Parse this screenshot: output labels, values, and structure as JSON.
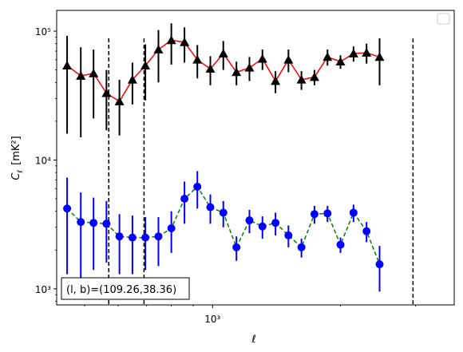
{
  "chart_data": {
    "type": "scatter",
    "xlabel": "ℓ",
    "ylabel_main": "C",
    "ylabel_sub": "ℓ",
    "ylabel_unit": "[mK²]",
    "x_scale": "log",
    "y_scale": "log",
    "xlim": [
      430,
      3700
    ],
    "ylim": [
      750,
      145000
    ],
    "x_tick_labels": [
      {
        "value": 1000,
        "label": "10³"
      }
    ],
    "y_tick_labels": [
      {
        "value": 1000,
        "label": "10³"
      },
      {
        "value": 10000,
        "label": "10⁴"
      },
      {
        "value": 100000,
        "label": "10⁵"
      }
    ],
    "grid": false,
    "legend": {
      "placement": "top-right",
      "entries": []
    },
    "vlines": [
      570,
      690,
      2960
    ],
    "annotation": "(l, b)=(109.26,38.36)",
    "annotation_placement": "bottom-left",
    "series": [
      {
        "marker": "triangle",
        "marker_color": "#000000",
        "line_color": "#ff0000",
        "line_style": "solid",
        "errorbar_color": "#000000",
        "points": [
          {
            "x": 455,
            "y": 54000,
            "lo": 16000,
            "hi": 92000
          },
          {
            "x": 490,
            "y": 45000,
            "lo": 15000,
            "hi": 75000
          },
          {
            "x": 525,
            "y": 47000,
            "lo": 21000,
            "hi": 72000
          },
          {
            "x": 563,
            "y": 33000,
            "lo": 17000,
            "hi": 50000
          },
          {
            "x": 604,
            "y": 28500,
            "lo": 15500,
            "hi": 42000
          },
          {
            "x": 648,
            "y": 42000,
            "lo": 27000,
            "hi": 57000
          },
          {
            "x": 695,
            "y": 54000,
            "lo": 29000,
            "hi": 79000
          },
          {
            "x": 746,
            "y": 72000,
            "lo": 40000,
            "hi": 102000
          },
          {
            "x": 800,
            "y": 85000,
            "lo": 55000,
            "hi": 115000
          },
          {
            "x": 859,
            "y": 82000,
            "lo": 57000,
            "hi": 107000
          },
          {
            "x": 921,
            "y": 60000,
            "lo": 43000,
            "hi": 78000
          },
          {
            "x": 988,
            "y": 51000,
            "lo": 38000,
            "hi": 64000
          },
          {
            "x": 1060,
            "y": 67000,
            "lo": 50000,
            "hi": 84000
          },
          {
            "x": 1138,
            "y": 48000,
            "lo": 38000,
            "hi": 58000
          },
          {
            "x": 1221,
            "y": 52000,
            "lo": 41000,
            "hi": 63000
          },
          {
            "x": 1310,
            "y": 61000,
            "lo": 50000,
            "hi": 72000
          },
          {
            "x": 1406,
            "y": 41000,
            "lo": 33000,
            "hi": 49000
          },
          {
            "x": 1508,
            "y": 60000,
            "lo": 48000,
            "hi": 72000
          },
          {
            "x": 1618,
            "y": 42000,
            "lo": 35000,
            "hi": 49000
          },
          {
            "x": 1736,
            "y": 44000,
            "lo": 38000,
            "hi": 50000
          },
          {
            "x": 1863,
            "y": 63000,
            "lo": 54000,
            "hi": 72000
          },
          {
            "x": 1999,
            "y": 58000,
            "lo": 51000,
            "hi": 65000
          },
          {
            "x": 2145,
            "y": 67000,
            "lo": 58000,
            "hi": 76000
          },
          {
            "x": 2302,
            "y": 68000,
            "lo": 56000,
            "hi": 80000
          },
          {
            "x": 2470,
            "y": 63000,
            "lo": 38000,
            "hi": 88000
          }
        ]
      },
      {
        "marker": "circle",
        "marker_color": "#0000ff",
        "line_color": "#008000",
        "line_style": "dashed",
        "errorbar_color": "#0000ff",
        "points": [
          {
            "x": 455,
            "y": 4200,
            "lo": 1300,
            "hi": 7300
          },
          {
            "x": 490,
            "y": 3300,
            "lo": 1000,
            "hi": 5600
          },
          {
            "x": 525,
            "y": 3250,
            "lo": 1400,
            "hi": 5100
          },
          {
            "x": 563,
            "y": 3200,
            "lo": 1600,
            "hi": 4800
          },
          {
            "x": 604,
            "y": 2550,
            "lo": 1300,
            "hi": 3800
          },
          {
            "x": 648,
            "y": 2500,
            "lo": 1300,
            "hi": 3700
          },
          {
            "x": 695,
            "y": 2500,
            "lo": 1400,
            "hi": 3600
          },
          {
            "x": 746,
            "y": 2550,
            "lo": 1500,
            "hi": 3600
          },
          {
            "x": 800,
            "y": 2950,
            "lo": 1900,
            "hi": 4000
          },
          {
            "x": 859,
            "y": 5000,
            "lo": 3200,
            "hi": 6800
          },
          {
            "x": 921,
            "y": 6200,
            "lo": 4200,
            "hi": 8200
          },
          {
            "x": 988,
            "y": 4300,
            "lo": 3200,
            "hi": 5400
          },
          {
            "x": 1060,
            "y": 3900,
            "lo": 3000,
            "hi": 4800
          },
          {
            "x": 1138,
            "y": 2100,
            "lo": 1650,
            "hi": 2550
          },
          {
            "x": 1221,
            "y": 3400,
            "lo": 2700,
            "hi": 4100
          },
          {
            "x": 1310,
            "y": 3050,
            "lo": 2450,
            "hi": 3650
          },
          {
            "x": 1406,
            "y": 3250,
            "lo": 2600,
            "hi": 3900
          },
          {
            "x": 1508,
            "y": 2600,
            "lo": 2100,
            "hi": 3100
          },
          {
            "x": 1618,
            "y": 2100,
            "lo": 1750,
            "hi": 2450
          },
          {
            "x": 1736,
            "y": 3800,
            "lo": 3200,
            "hi": 4400
          },
          {
            "x": 1863,
            "y": 3850,
            "lo": 3300,
            "hi": 4400
          },
          {
            "x": 1999,
            "y": 2200,
            "lo": 1900,
            "hi": 2500
          },
          {
            "x": 2145,
            "y": 3900,
            "lo": 3300,
            "hi": 4500
          },
          {
            "x": 2302,
            "y": 2800,
            "lo": 2300,
            "hi": 3300
          },
          {
            "x": 2470,
            "y": 1550,
            "lo": 950,
            "hi": 2150
          }
        ]
      }
    ]
  }
}
